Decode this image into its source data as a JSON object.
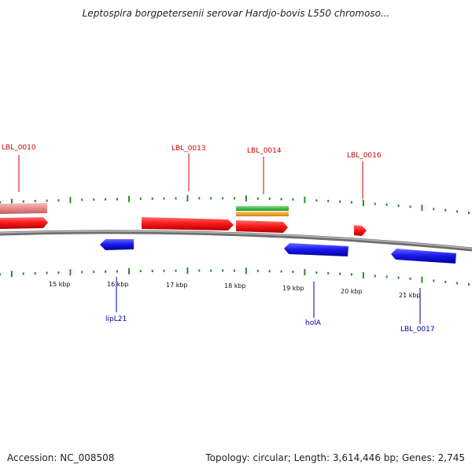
{
  "title": "Leptospira borgpetersenii serovar Hardjo-bovis L550 chromoso...",
  "footer": {
    "accession": "Accession: NC_008508",
    "summary": "Topology: circular; Length: 3,614,446 bp; Genes: 2,745"
  },
  "kbp_labels": [
    "15 kbp",
    "16 kbp",
    "17 kbp",
    "18 kbp",
    "19 kbp",
    "20 kbp",
    "21 kbp"
  ],
  "gene_labels_forward": [
    "LBL_0010",
    "LBL_0013",
    "LBL_0014",
    "LBL_0016"
  ],
  "gene_labels_reverse": [
    "lipL21",
    "holA",
    "LBL_0017"
  ],
  "colors": {
    "forward_gene": "#ff1a1a",
    "reverse_gene": "#1a1aee",
    "pseudo_gene": "#e8888a",
    "green_feature": "#33bb33",
    "orange_feature": "#f0a020",
    "backbone": "#888888",
    "ticks": "#2a8a2a",
    "forward_label": "#cc0000",
    "reverse_label": "#0000aa"
  }
}
